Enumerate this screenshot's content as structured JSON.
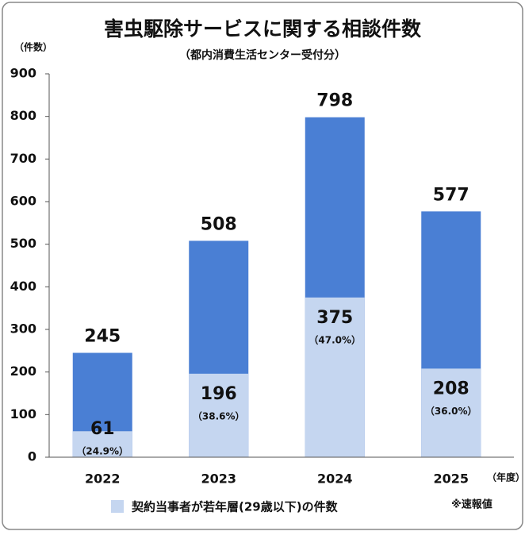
{
  "chart_data": {
    "type": "bar",
    "title": "害虫駆除サービスに関する相談件数",
    "subtitle": "（都内消費生活センター受付分）",
    "y_unit": "（件数）",
    "x_unit": "（年度）",
    "categories": [
      "2022",
      "2023",
      "2024",
      "2025"
    ],
    "values": [
      245,
      508,
      798,
      577
    ],
    "color": "#4a7fd4",
    "subset": {
      "name": "契約当事者が若年層(29歳以下)の件数",
      "color": "#c5d6f0",
      "values": [
        61,
        196,
        375,
        208
      ]
    },
    "shares": {
      "values": [
        24.9,
        38.6,
        47.0,
        36.0
      ],
      "value_labels": [
        "（24.9%）",
        "（38.6%）",
        "（47.0%）",
        "（36.0%）"
      ]
    },
    "ylim": [
      0,
      900
    ],
    "yticks": [
      0,
      100,
      200,
      300,
      400,
      500,
      600,
      700,
      800,
      900
    ],
    "grid": false,
    "note": "※速報値"
  }
}
